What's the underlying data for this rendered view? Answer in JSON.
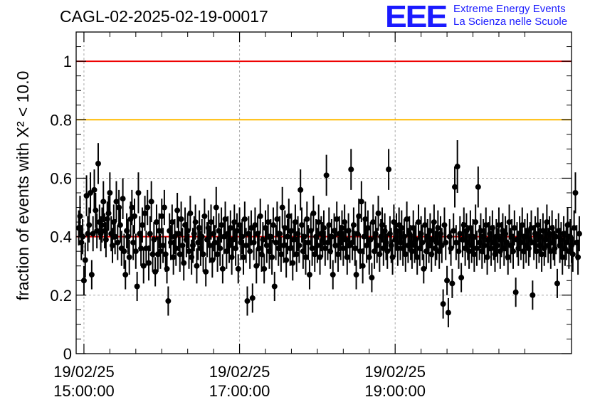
{
  "header": {
    "title": "CAGL-02-2025-02-19-00017",
    "logo_letters": "EEE",
    "logo_line1": "Extreme Energy Events",
    "logo_line2": "La Scienza nelle Scuole"
  },
  "chart_data": {
    "type": "scatter",
    "title": "CAGL-02-2025-02-19-00017",
    "xlabel": "",
    "ylabel": "fraction of events with X² < 10.0",
    "ylim": [
      0,
      1.1
    ],
    "yticks": [
      0,
      0.2,
      0.4,
      0.6,
      0.8,
      1
    ],
    "ytick_labels": [
      "0",
      "0.2",
      "0.4",
      "0.6",
      "0.8",
      "1"
    ],
    "x_is_time": true,
    "xlim_minutes": [
      -6,
      376
    ],
    "xticks_minutes": [
      0,
      120,
      240
    ],
    "xtick_labels": [
      [
        "19/02/25",
        "15:00:00"
      ],
      [
        "19/02/25",
        "17:00:00"
      ],
      [
        "19/02/25",
        "19:00:00"
      ]
    ],
    "grid": true,
    "reference_lines": [
      {
        "y": 1.0,
        "color": "#ee0000"
      },
      {
        "y": 0.8,
        "color": "#ffbb00"
      },
      {
        "y": 0.4,
        "color": "#ee0000"
      }
    ],
    "series": [
      {
        "marker": "filled-circle",
        "color": "#000000",
        "x_start_minute": -4,
        "x_step_minutes": 1,
        "y": [
          0.43,
          0.47,
          0.38,
          0.4,
          0.25,
          0.32,
          0.54,
          0.41,
          0.44,
          0.55,
          0.27,
          0.41,
          0.56,
          0.49,
          0.42,
          0.65,
          0.45,
          0.41,
          0.44,
          0.52,
          0.42,
          0.39,
          0.46,
          0.48,
          0.55,
          0.41,
          0.37,
          0.45,
          0.4,
          0.52,
          0.38,
          0.5,
          0.44,
          0.36,
          0.53,
          0.35,
          0.27,
          0.42,
          0.4,
          0.33,
          0.46,
          0.5,
          0.38,
          0.47,
          0.35,
          0.23,
          0.55,
          0.41,
          0.36,
          0.44,
          0.3,
          0.48,
          0.36,
          0.5,
          0.31,
          0.41,
          0.52,
          0.34,
          0.39,
          0.28,
          0.45,
          0.34,
          0.42,
          0.35,
          0.47,
          0.37,
          0.5,
          0.34,
          0.29,
          0.18,
          0.42,
          0.38,
          0.45,
          0.33,
          0.4,
          0.36,
          0.49,
          0.41,
          0.34,
          0.46,
          0.37,
          0.31,
          0.44,
          0.39,
          0.42,
          0.35,
          0.48,
          0.33,
          0.37,
          0.41,
          0.45,
          0.3,
          0.38,
          0.43,
          0.36,
          0.4,
          0.34,
          0.47,
          0.28,
          0.39,
          0.43,
          0.37,
          0.45,
          0.32,
          0.41,
          0.38,
          0.5,
          0.34,
          0.42,
          0.36,
          0.44,
          0.29,
          0.4,
          0.46,
          0.35,
          0.41,
          0.37,
          0.43,
          0.33,
          0.39,
          0.45,
          0.36,
          0.42,
          0.29,
          0.44,
          0.38,
          0.4,
          0.33,
          0.46,
          0.37,
          0.18,
          0.41,
          0.35,
          0.43,
          0.19,
          0.38,
          0.44,
          0.3,
          0.41,
          0.36,
          0.47,
          0.34,
          0.39,
          0.29,
          0.43,
          0.37,
          0.45,
          0.35,
          0.4,
          0.33,
          0.44,
          0.23,
          0.38,
          0.46,
          0.36,
          0.41,
          0.34,
          0.5,
          0.37,
          0.43,
          0.32,
          0.4,
          0.47,
          0.36,
          0.42,
          0.31,
          0.39,
          0.45,
          0.34,
          0.41,
          0.37,
          0.56,
          0.44,
          0.35,
          0.4,
          0.33,
          0.46,
          0.38,
          0.27,
          0.42,
          0.36,
          0.48,
          0.34,
          0.4,
          0.37,
          0.45,
          0.33,
          0.41,
          0.39,
          0.43,
          0.36,
          0.61,
          0.38,
          0.44,
          0.35,
          0.4,
          0.27,
          0.42,
          0.37,
          0.46,
          0.34,
          0.41,
          0.38,
          0.43,
          0.36,
          0.45,
          0.39,
          0.33,
          0.42,
          0.37,
          0.63,
          0.38,
          0.44,
          0.36,
          0.27,
          0.41,
          0.47,
          0.35,
          0.52,
          0.3,
          0.4,
          0.46,
          0.37,
          0.43,
          0.33,
          0.39,
          0.26,
          0.45,
          0.35,
          0.41,
          0.37,
          0.48,
          0.34,
          0.4,
          0.44,
          0.36,
          0.42,
          0.38,
          0.35,
          0.63,
          0.41,
          0.37,
          0.33,
          0.45,
          0.39,
          0.42,
          0.36,
          0.44,
          0.38,
          0.43,
          0.36,
          0.4,
          0.34,
          0.46,
          0.37,
          0.41,
          0.38,
          0.35,
          0.43,
          0.37,
          0.39,
          0.33,
          0.45,
          0.36,
          0.41,
          0.38,
          0.29,
          0.44,
          0.35,
          0.4,
          0.37,
          0.42,
          0.34,
          0.39,
          0.45,
          0.36,
          0.38,
          0.43,
          0.35,
          0.41,
          0.37,
          0.17,
          0.44,
          0.38,
          0.25,
          0.14,
          0.4,
          0.36,
          0.24,
          0.42,
          0.57,
          0.38,
          0.64,
          0.35,
          0.41,
          0.26,
          0.39,
          0.44,
          0.36,
          0.42,
          0.38,
          0.35,
          0.43,
          0.37,
          0.4,
          0.34,
          0.45,
          0.36,
          0.57,
          0.38,
          0.42,
          0.35,
          0.4,
          0.37,
          0.44,
          0.33,
          0.39,
          0.41,
          0.36,
          0.43,
          0.38,
          0.34,
          0.4,
          0.37,
          0.44,
          0.35,
          0.39,
          0.42,
          0.36,
          0.41,
          0.38,
          0.33,
          0.45,
          0.37,
          0.4,
          0.35,
          0.43,
          0.21,
          0.39,
          0.36,
          0.41,
          0.38,
          0.44,
          0.35,
          0.4,
          0.37,
          0.42,
          0.36,
          0.39,
          0.43,
          0.2,
          0.38,
          0.41,
          0.35,
          0.44,
          0.37,
          0.4,
          0.34,
          0.42,
          0.36,
          0.39,
          0.45,
          0.37,
          0.41,
          0.35,
          0.43,
          0.38,
          0.36,
          0.4,
          0.24,
          0.42,
          0.37,
          0.39,
          0.33,
          0.41,
          0.36,
          0.38,
          0.44,
          0.35,
          0.4,
          0.37,
          0.34,
          0.43,
          0.55,
          0.38,
          0.33,
          0.41
        ],
        "err": [
          0.06,
          0.07,
          0.06,
          0.06,
          0.05,
          0.06,
          0.07,
          0.06,
          0.06,
          0.07,
          0.05,
          0.06,
          0.07,
          0.06,
          0.06,
          0.07,
          0.06,
          0.06,
          0.06,
          0.07,
          0.06,
          0.06,
          0.06,
          0.06,
          0.07,
          0.06,
          0.06,
          0.06,
          0.06,
          0.07,
          0.06,
          0.06,
          0.06,
          0.06,
          0.07,
          0.06,
          0.05,
          0.06,
          0.06,
          0.06,
          0.06,
          0.06,
          0.06,
          0.06,
          0.06,
          0.05,
          0.07,
          0.06,
          0.06,
          0.06,
          0.06,
          0.06,
          0.06,
          0.06,
          0.06,
          0.06,
          0.07,
          0.06,
          0.06,
          0.05,
          0.06,
          0.06,
          0.06,
          0.06,
          0.06,
          0.06,
          0.06,
          0.06,
          0.05,
          0.05,
          0.06,
          0.06,
          0.06,
          0.06,
          0.06,
          0.06,
          0.06,
          0.06,
          0.06,
          0.06,
          0.06,
          0.06,
          0.06,
          0.06,
          0.06,
          0.06,
          0.06,
          0.06,
          0.06,
          0.06,
          0.06,
          0.06,
          0.06,
          0.06,
          0.06,
          0.06,
          0.06,
          0.06,
          0.05,
          0.06,
          0.06,
          0.06,
          0.06,
          0.06,
          0.06,
          0.06,
          0.07,
          0.06,
          0.06,
          0.06,
          0.06,
          0.05,
          0.06,
          0.06,
          0.06,
          0.06,
          0.06,
          0.06,
          0.06,
          0.06,
          0.06,
          0.06,
          0.06,
          0.05,
          0.06,
          0.06,
          0.06,
          0.06,
          0.06,
          0.06,
          0.05,
          0.06,
          0.06,
          0.06,
          0.05,
          0.06,
          0.06,
          0.06,
          0.06,
          0.06,
          0.06,
          0.06,
          0.06,
          0.05,
          0.06,
          0.06,
          0.06,
          0.06,
          0.06,
          0.06,
          0.06,
          0.05,
          0.06,
          0.06,
          0.06,
          0.06,
          0.06,
          0.07,
          0.06,
          0.06,
          0.06,
          0.06,
          0.06,
          0.06,
          0.06,
          0.06,
          0.06,
          0.06,
          0.06,
          0.06,
          0.06,
          0.07,
          0.06,
          0.06,
          0.06,
          0.06,
          0.06,
          0.06,
          0.05,
          0.06,
          0.06,
          0.06,
          0.06,
          0.06,
          0.06,
          0.06,
          0.06,
          0.06,
          0.06,
          0.06,
          0.06,
          0.07,
          0.06,
          0.06,
          0.06,
          0.06,
          0.05,
          0.06,
          0.06,
          0.06,
          0.06,
          0.06,
          0.06,
          0.06,
          0.06,
          0.06,
          0.06,
          0.06,
          0.06,
          0.06,
          0.07,
          0.06,
          0.06,
          0.06,
          0.05,
          0.06,
          0.06,
          0.06,
          0.07,
          0.06,
          0.06,
          0.06,
          0.06,
          0.06,
          0.06,
          0.06,
          0.05,
          0.06,
          0.06,
          0.06,
          0.06,
          0.06,
          0.06,
          0.06,
          0.06,
          0.06,
          0.06,
          0.06,
          0.06,
          0.07,
          0.06,
          0.06,
          0.06,
          0.06,
          0.06,
          0.06,
          0.06,
          0.06,
          0.06,
          0.06,
          0.06,
          0.06,
          0.06,
          0.06,
          0.06,
          0.06,
          0.06,
          0.06,
          0.06,
          0.06,
          0.06,
          0.06,
          0.06,
          0.06,
          0.06,
          0.06,
          0.05,
          0.06,
          0.06,
          0.06,
          0.06,
          0.06,
          0.06,
          0.06,
          0.06,
          0.06,
          0.06,
          0.06,
          0.06,
          0.06,
          0.06,
          0.05,
          0.06,
          0.06,
          0.05,
          0.05,
          0.06,
          0.06,
          0.05,
          0.06,
          0.07,
          0.06,
          0.09,
          0.06,
          0.06,
          0.05,
          0.06,
          0.06,
          0.06,
          0.06,
          0.06,
          0.06,
          0.06,
          0.06,
          0.06,
          0.06,
          0.06,
          0.06,
          0.07,
          0.06,
          0.06,
          0.06,
          0.06,
          0.06,
          0.06,
          0.06,
          0.06,
          0.06,
          0.06,
          0.06,
          0.06,
          0.06,
          0.06,
          0.06,
          0.06,
          0.06,
          0.06,
          0.06,
          0.06,
          0.06,
          0.06,
          0.06,
          0.06,
          0.06,
          0.06,
          0.06,
          0.06,
          0.05,
          0.06,
          0.06,
          0.06,
          0.06,
          0.06,
          0.06,
          0.06,
          0.06,
          0.06,
          0.06,
          0.06,
          0.06,
          0.05,
          0.06,
          0.06,
          0.06,
          0.06,
          0.06,
          0.06,
          0.06,
          0.06,
          0.06,
          0.06,
          0.06,
          0.06,
          0.06,
          0.06,
          0.06,
          0.06,
          0.06,
          0.06,
          0.05,
          0.06,
          0.06,
          0.06,
          0.06,
          0.06,
          0.06,
          0.06,
          0.06,
          0.06,
          0.06,
          0.06,
          0.06,
          0.06,
          0.07,
          0.06,
          0.06,
          0.06
        ]
      }
    ]
  }
}
